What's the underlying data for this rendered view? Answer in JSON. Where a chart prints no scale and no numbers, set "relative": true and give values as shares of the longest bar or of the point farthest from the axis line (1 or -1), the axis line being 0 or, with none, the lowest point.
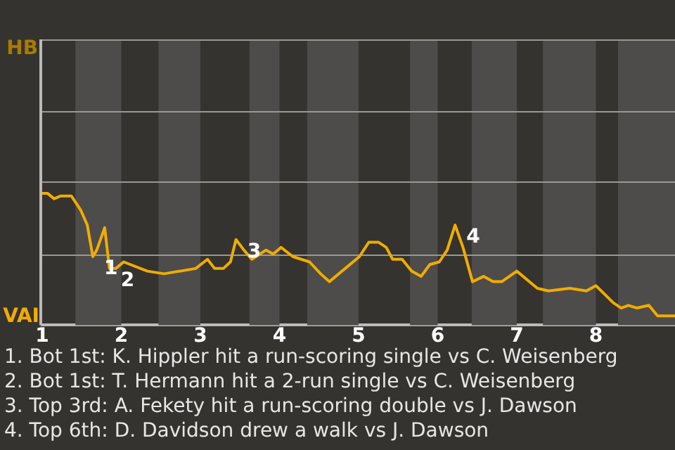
{
  "chart_data": {
    "type": "line",
    "relative": true,
    "x": [
      1,
      1.07,
      1.15,
      1.23,
      1.37,
      1.49,
      1.57,
      1.64,
      1.69,
      1.79,
      1.85,
      1.93,
      2.03,
      2.33,
      2.54,
      2.94,
      3.09,
      3.18,
      3.29,
      3.38,
      3.45,
      3.55,
      3.65,
      3.83,
      3.92,
      4.02,
      4.17,
      4.38,
      4.52,
      4.63,
      5.01,
      5.13,
      5.25,
      5.35,
      5.43,
      5.55,
      5.67,
      5.79,
      5.9,
      6.02,
      6.12,
      6.22,
      6.32,
      6.44,
      6.58,
      6.7,
      6.81,
      7,
      7.26,
      7.4,
      7.67,
      7.88,
      8,
      8.22,
      8.32,
      8.41,
      8.52,
      8.67,
      8.78,
      9
    ],
    "series": [
      {
        "color": "#f0ac00",
        "values": [
          1,
          1,
          0.96,
          0.98,
          0.98,
          0.87,
          0.76,
          0.52,
          0.57,
          0.74,
          0.43,
          0.43,
          0.48,
          0.41,
          0.39,
          0.43,
          0.5,
          0.43,
          0.43,
          0.48,
          0.65,
          0.57,
          0.5,
          0.57,
          0.54,
          0.59,
          0.52,
          0.48,
          0.39,
          0.33,
          0.52,
          0.63,
          0.63,
          0.59,
          0.5,
          0.5,
          0.41,
          0.37,
          0.46,
          0.48,
          0.57,
          0.76,
          0.59,
          0.33,
          0.37,
          0.33,
          0.33,
          0.41,
          0.28,
          0.26,
          0.28,
          0.26,
          0.3,
          0.17,
          0.13,
          0.15,
          0.13,
          0.15,
          0.07,
          0.07
        ]
      }
    ],
    "xlim": [
      1,
      9
    ],
    "xticks": [
      1,
      2,
      3,
      4,
      5,
      6,
      7,
      8
    ],
    "ref_lines": [
      {
        "axis": "y",
        "value": 0.54,
        "color": "#9a9894"
      },
      {
        "axis": "y",
        "value": 1.09,
        "color": "#9a9894"
      },
      {
        "axis": "y",
        "value": 1.63,
        "color": "#9a9894"
      }
    ],
    "marker": "none",
    "bands": [
      {
        "axis": "x",
        "from": 1.42,
        "to": 2,
        "color": "#4d4c4a"
      },
      {
        "axis": "x",
        "from": 2.47,
        "to": 3,
        "color": "#4d4c4a"
      },
      {
        "axis": "x",
        "from": 3.62,
        "to": 4,
        "color": "#4d4c4a"
      },
      {
        "axis": "x",
        "from": 4.35,
        "to": 5,
        "color": "#4d4c4a"
      },
      {
        "axis": "x",
        "from": 5.65,
        "to": 6,
        "color": "#4d4c4a"
      },
      {
        "axis": "x",
        "from": 6.43,
        "to": 7,
        "color": "#4d4c4a"
      },
      {
        "axis": "x",
        "from": 7.33,
        "to": 8,
        "color": "#4d4c4a"
      },
      {
        "axis": "x",
        "from": 8.28,
        "to": 9,
        "color": "#4d4c4a"
      }
    ],
    "annotations": [
      "HB",
      "VAI",
      {
        "text": "1",
        "x": 1.64,
        "y": 0.52
      },
      {
        "text": "2",
        "x": 1.85,
        "y": 0.43
      },
      {
        "text": "3",
        "x": 3.45,
        "y": 0.65
      },
      {
        "text": "4",
        "x": 6.22,
        "y": 0.76
      },
      "1. Bot 1st: K. Hippler hit a run-scoring single vs C. Weisenberg",
      "2. Bot 1st: T. Hermann hit a 2-run single vs C. Weisenberg",
      "3. Top 3rd: A. Fekety hit a run-scoring double vs J. Dawson",
      "4. Top 6th: D. Davidson drew a walk vs J. Dawson"
    ]
  }
}
